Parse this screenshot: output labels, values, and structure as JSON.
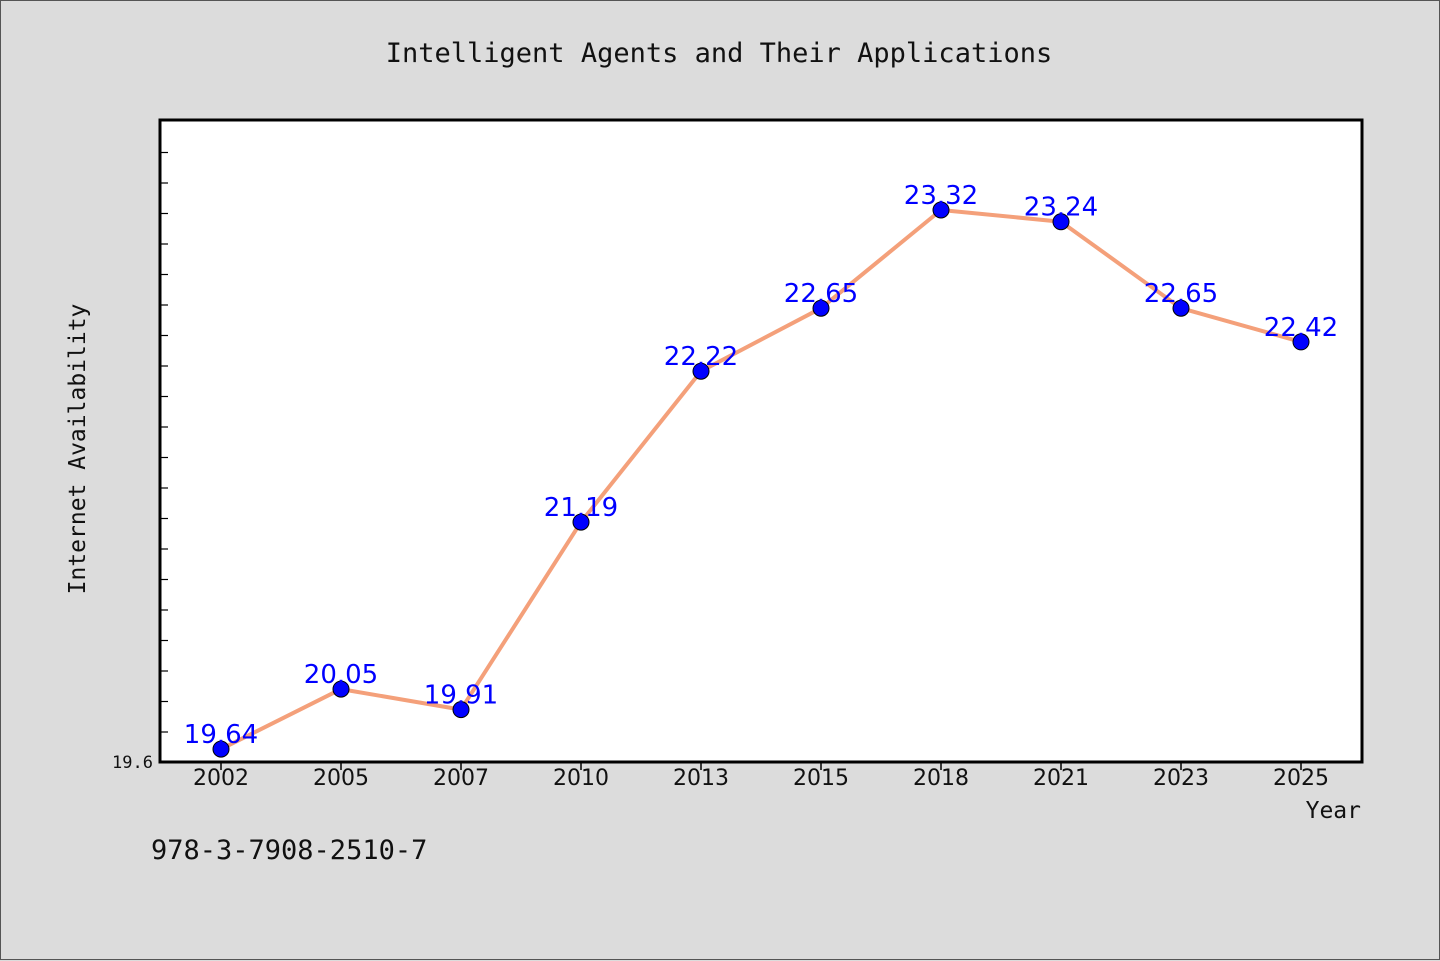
{
  "chart_data": {
    "type": "line",
    "title": "Intelligent Agents and Their Applications",
    "xlabel": "Year",
    "ylabel": "Internet Availability",
    "categories": [
      "2002",
      "2005",
      "2007",
      "2010",
      "2013",
      "2015",
      "2018",
      "2021",
      "2023",
      "2025"
    ],
    "series": [
      {
        "values": [
          19.64,
          20.05,
          19.91,
          21.19,
          22.22,
          22.65,
          23.32,
          23.24,
          22.65,
          22.42
        ]
      }
    ],
    "data_labels": [
      "19.64",
      "20.05",
      "19.91",
      "21.19",
      "22.22",
      "22.65",
      "23.32",
      "23.24",
      "22.65",
      "22.42"
    ],
    "y_tick_label": "19.6",
    "ylim": [
      19.6,
      23.8
    ],
    "grid": false,
    "legend": "none",
    "colors": {
      "line": "#f4a07a",
      "marker": "#0000ff",
      "data_label": "#0000ff",
      "background": "#dcdcdc",
      "plot_background": "#ffffff"
    }
  },
  "footer": {
    "isbn": "978-3-7908-2510-7"
  }
}
